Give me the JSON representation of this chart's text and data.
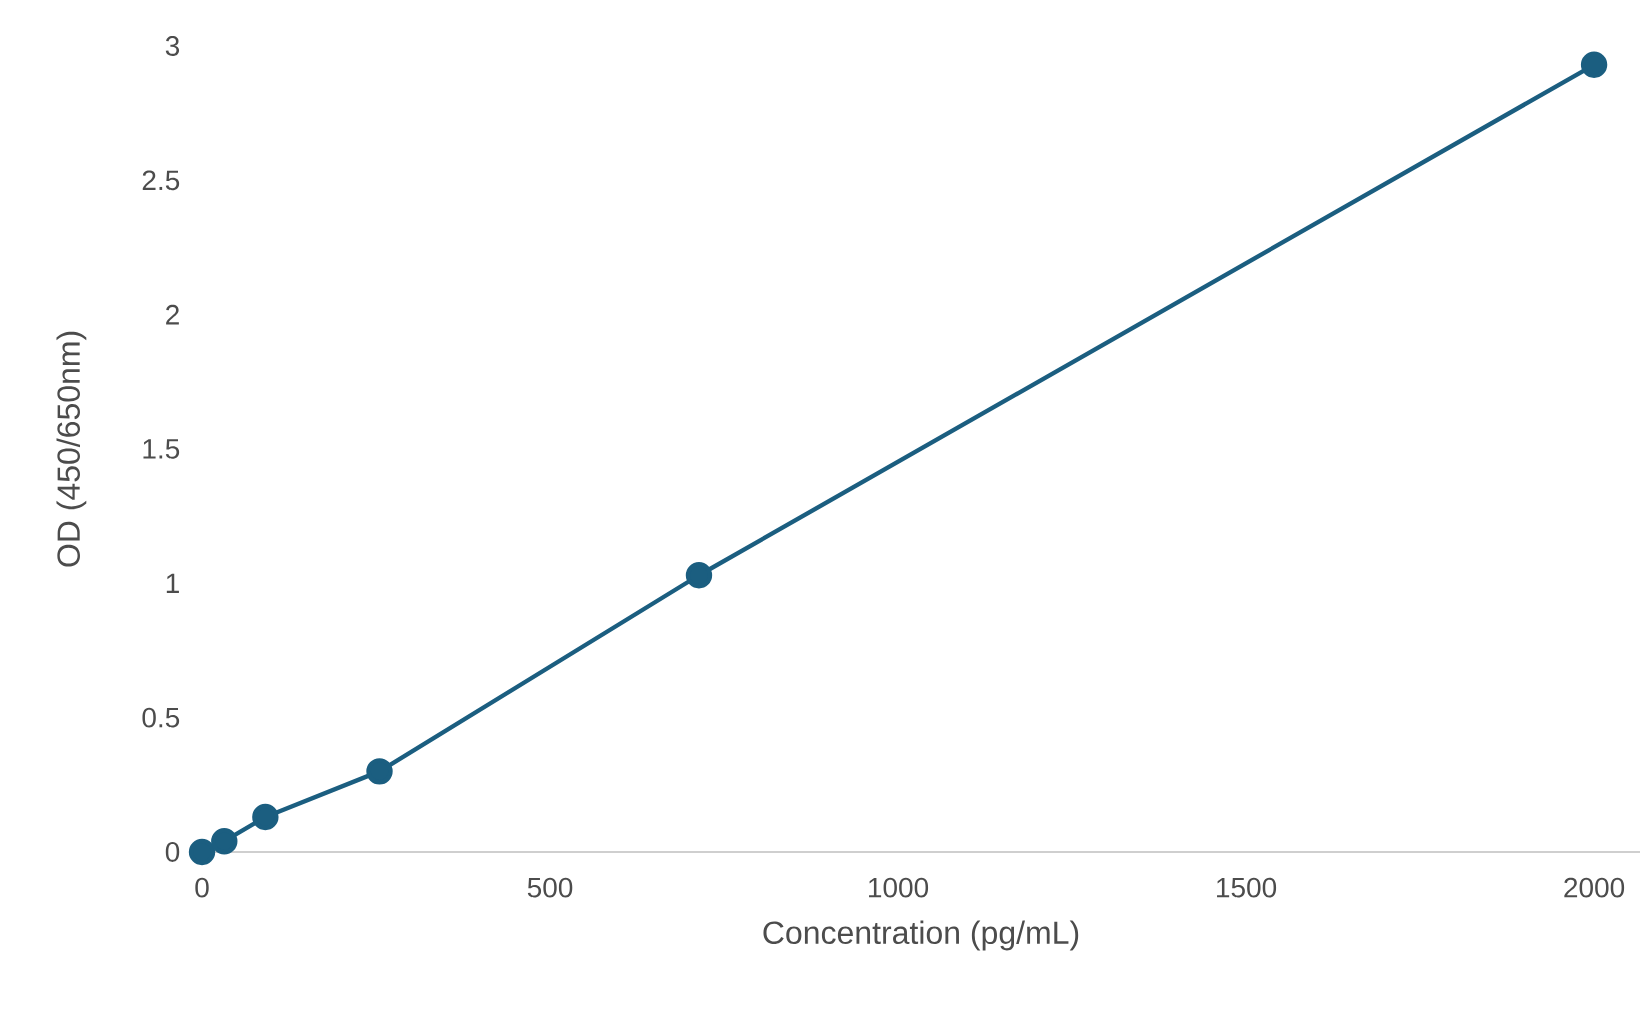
{
  "chart_data": {
    "type": "line",
    "xlabel": "Concentration (pg/mL)",
    "ylabel": "OD (450/650nm)",
    "x": [
      0,
      32,
      91,
      255,
      714,
      2000
    ],
    "series": [
      {
        "color": "#1b5e80",
        "values": [
          0,
          0.04,
          0.13,
          0.3,
          1.03,
          2.93
        ]
      }
    ],
    "xlim": [
      0,
      2066
    ],
    "ylim": [
      0,
      3
    ],
    "xticks": [
      0,
      500,
      1000,
      1500,
      2000
    ],
    "yticks": [
      0,
      0.5,
      1,
      1.5,
      2,
      2.5,
      3
    ],
    "grid": false,
    "marker": "circle",
    "line_style": "solid"
  }
}
